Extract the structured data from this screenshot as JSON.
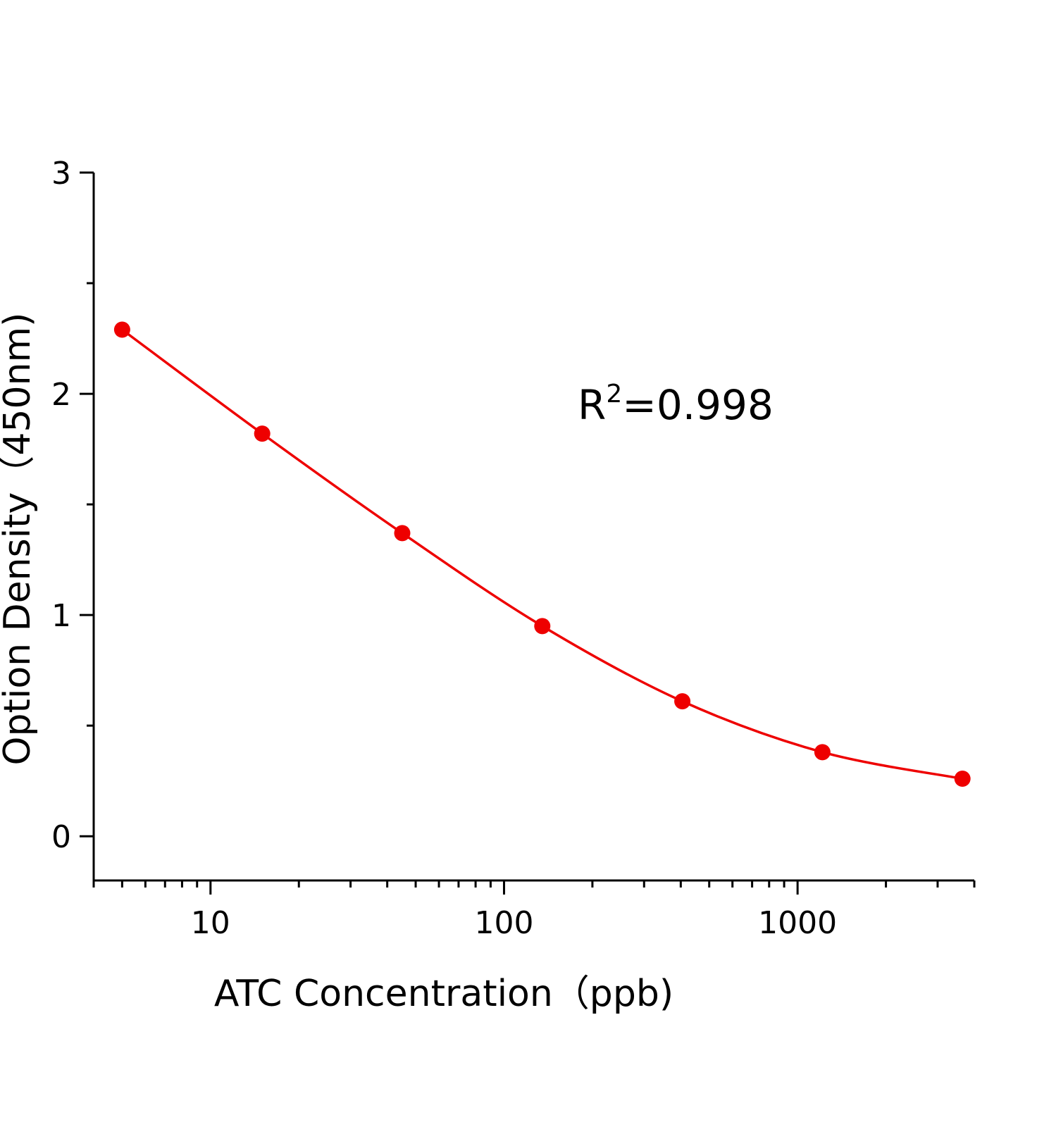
{
  "chart_data": {
    "type": "scatter",
    "title": "",
    "xlabel": "ATC Concentration（ppb)",
    "ylabel": "Option Density（450nm)",
    "x_scale": "log",
    "xlim": [
      4,
      4000
    ],
    "ylim": [
      -0.2,
      3
    ],
    "x_ticks": [
      10,
      100,
      1000
    ],
    "x_tick_labels": [
      "10",
      "100",
      "1000"
    ],
    "y_ticks": [
      0,
      1,
      2,
      3
    ],
    "y_tick_labels": [
      "0",
      "1",
      "2",
      "3"
    ],
    "grid": false,
    "legend": "none",
    "series": [
      {
        "x": [
          5,
          15,
          45,
          135,
          405,
          1215,
          3645
        ],
        "y": [
          2.29,
          1.82,
          1.37,
          0.95,
          0.61,
          0.38,
          0.26
        ],
        "color": "#ee0000",
        "marker": "circle",
        "fit_line": true
      }
    ],
    "annotations": [
      {
        "base": "R",
        "sup": "2",
        "rest": "=0.998"
      }
    ]
  }
}
